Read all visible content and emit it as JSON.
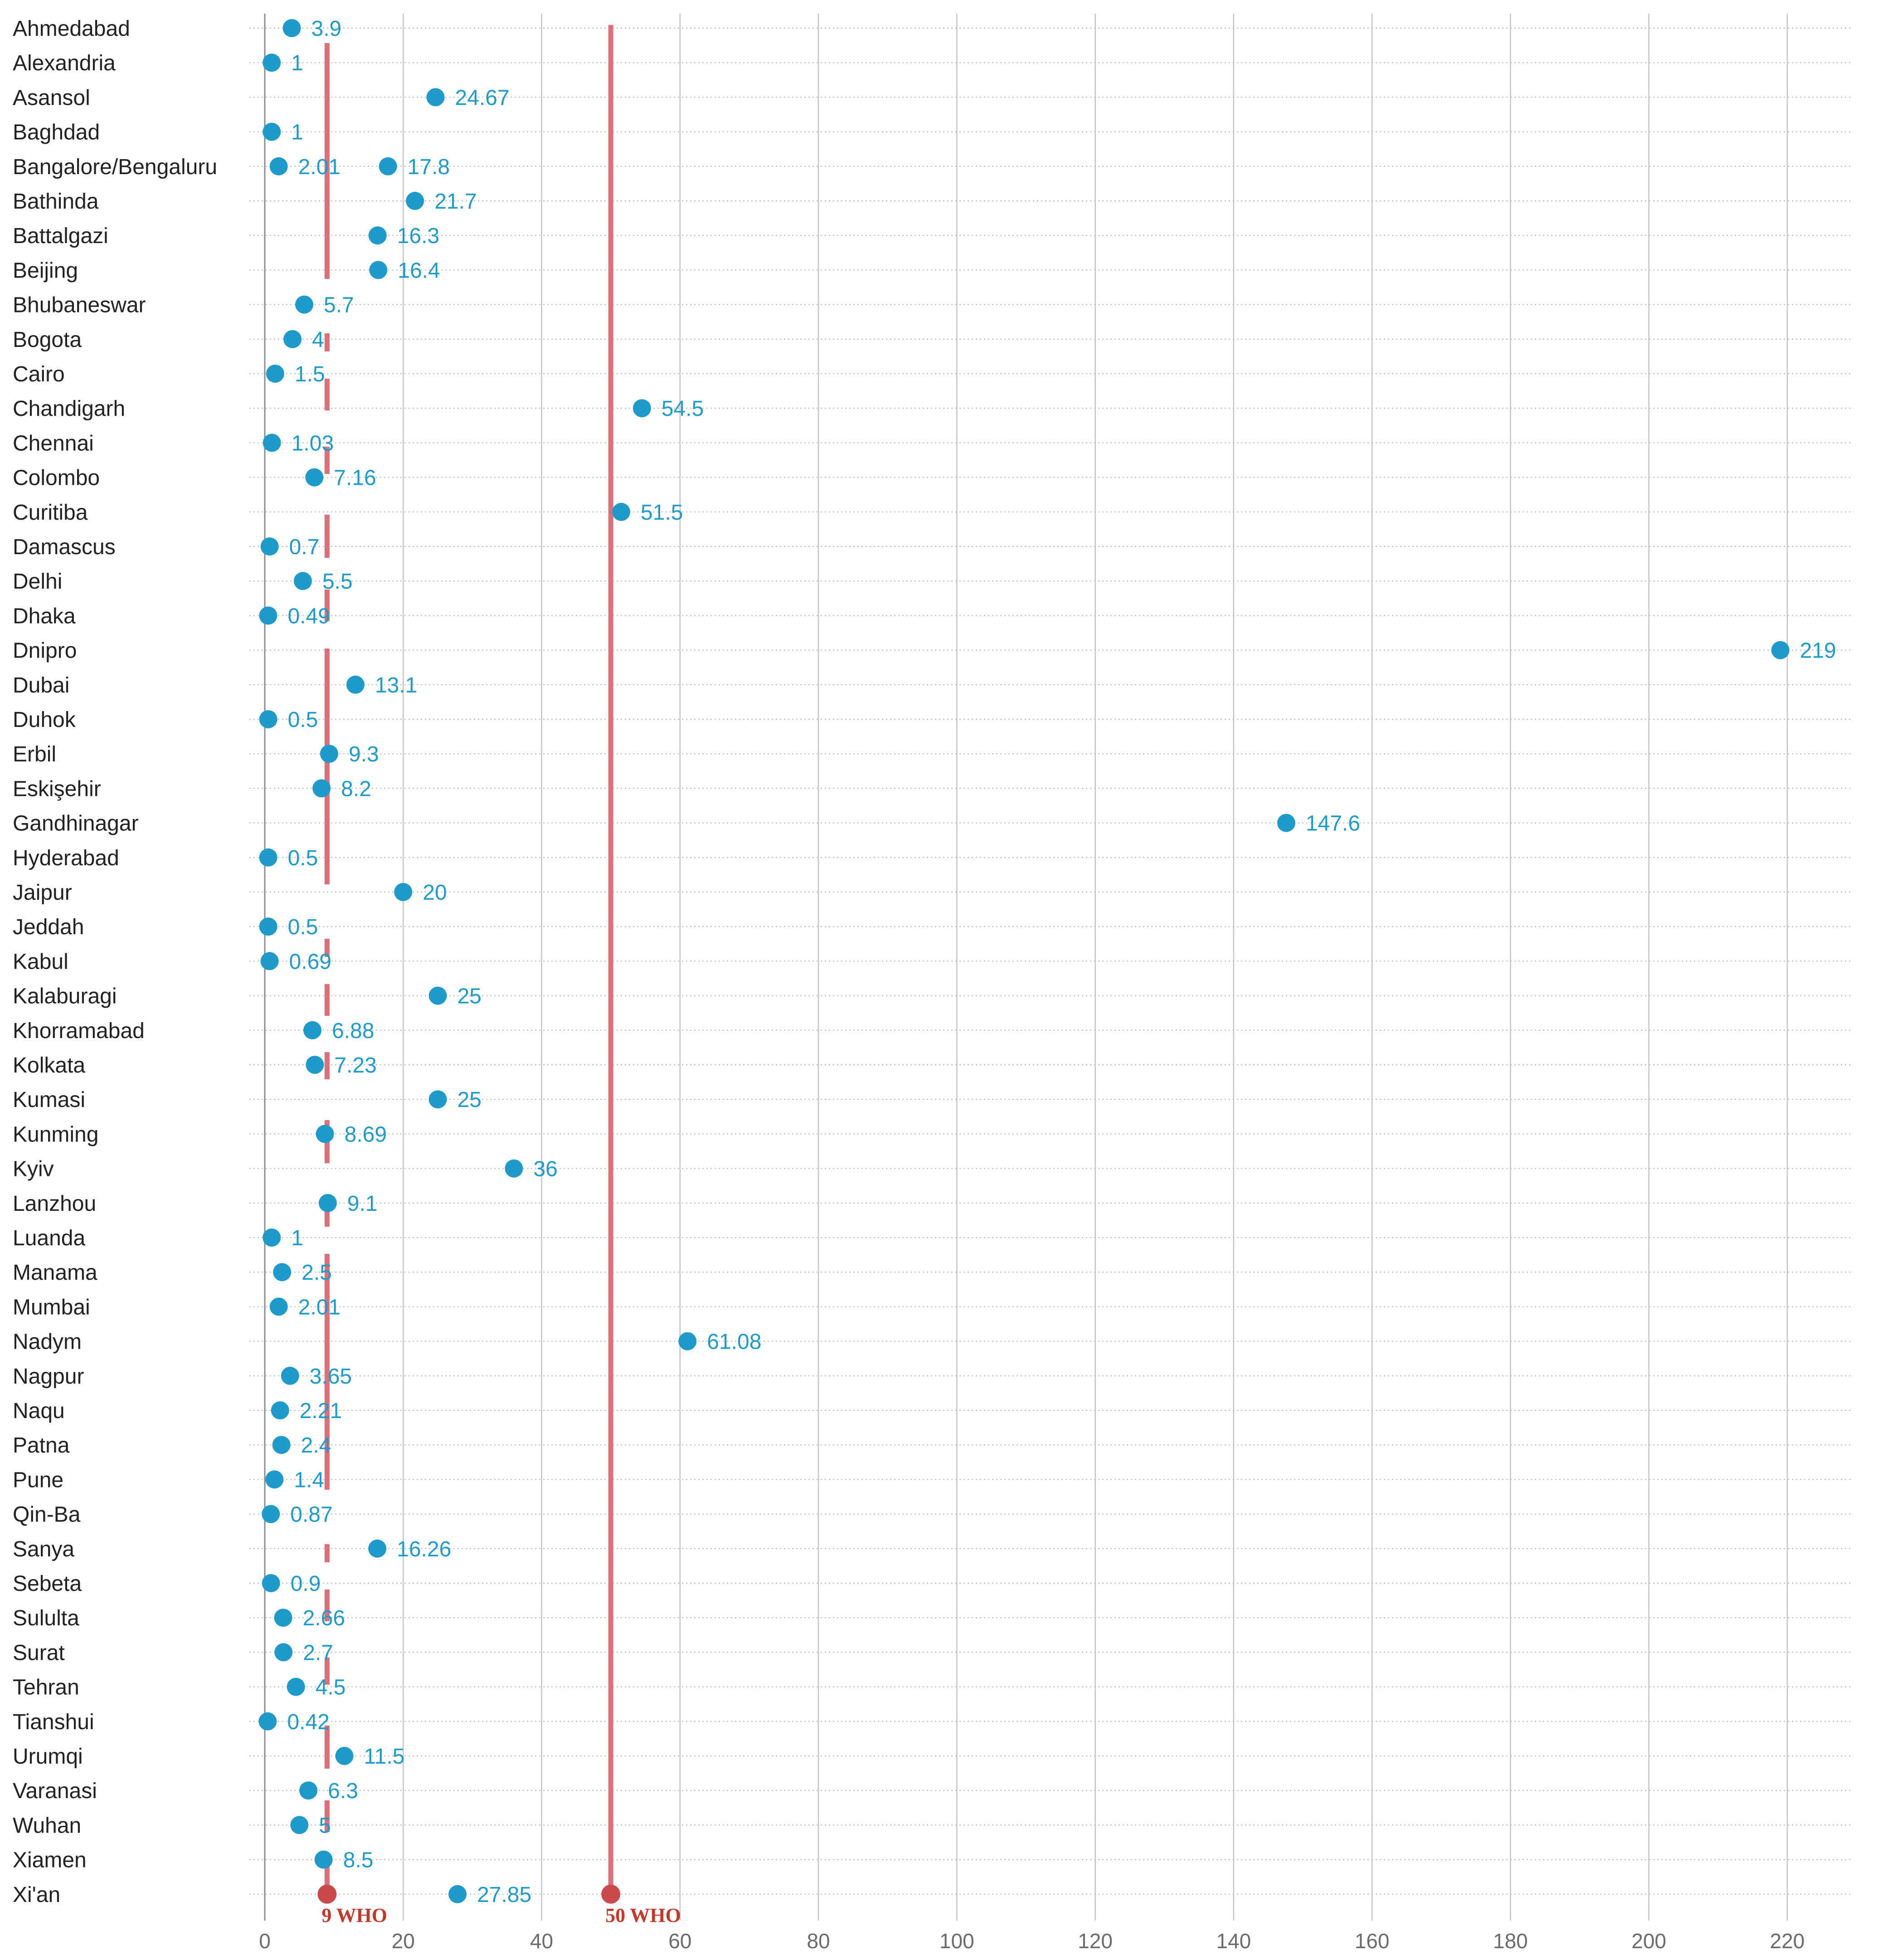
{
  "chart_data": {
    "type": "scatter",
    "orientation": "horizontal-dot",
    "categories": [
      "Ahmedabad",
      "Alexandria",
      "Asansol",
      "Baghdad",
      "Bangalore/Bengaluru",
      "Bathinda",
      "Battalgazi",
      "Beijing",
      "Bhubaneswar",
      "Bogota",
      "Cairo",
      "Chandigarh",
      "Chennai",
      "Colombo",
      "Curitiba",
      "Damascus",
      "Delhi",
      "Dhaka",
      "Dnipro",
      "Dubai",
      "Duhok",
      "Erbil",
      "Eskişehir",
      "Gandhinagar",
      "Hyderabad",
      "Jaipur",
      "Jeddah",
      "Kabul",
      "Kalaburagi",
      "Khorramabad",
      "Kolkata",
      "Kumasi",
      "Kunming",
      "Kyiv",
      "Lanzhou",
      "Luanda",
      "Manama",
      "Mumbai",
      "Nadym",
      "Nagpur",
      "Naqu",
      "Patna",
      "Pune",
      "Qin-Ba",
      "Sanya",
      "Sebeta",
      "Sululta",
      "Surat",
      "Tehran",
      "Tianshui",
      "Urumqi",
      "Varanasi",
      "Wuhan",
      "Xiamen",
      "Xi'an"
    ],
    "points": [
      {
        "row": 0,
        "value": 3.9,
        "label": "3.9"
      },
      {
        "row": 1,
        "value": 1,
        "label": "1"
      },
      {
        "row": 2,
        "value": 24.67,
        "label": "24.67"
      },
      {
        "row": 3,
        "value": 1,
        "label": "1"
      },
      {
        "row": 4,
        "value": 2.01,
        "label": "2.01"
      },
      {
        "row": 4,
        "value": 17.8,
        "label": "17.8"
      },
      {
        "row": 5,
        "value": 21.7,
        "label": "21.7"
      },
      {
        "row": 6,
        "value": 16.3,
        "label": "16.3"
      },
      {
        "row": 7,
        "value": 16.4,
        "label": "16.4"
      },
      {
        "row": 8,
        "value": 5.7,
        "label": "5.7"
      },
      {
        "row": 9,
        "value": 4,
        "label": "4"
      },
      {
        "row": 10,
        "value": 1.5,
        "label": "1.5"
      },
      {
        "row": 11,
        "value": 54.5,
        "label": "54.5"
      },
      {
        "row": 12,
        "value": 1.03,
        "label": "1.03"
      },
      {
        "row": 13,
        "value": 7.16,
        "label": "7.16"
      },
      {
        "row": 14,
        "value": 51.5,
        "label": "51.5"
      },
      {
        "row": 15,
        "value": 0.7,
        "label": "0.7"
      },
      {
        "row": 16,
        "value": 5.5,
        "label": "5.5"
      },
      {
        "row": 17,
        "value": 0.49,
        "label": "0.49"
      },
      {
        "row": 18,
        "value": 219,
        "label": "219"
      },
      {
        "row": 19,
        "value": 13.1,
        "label": "13.1"
      },
      {
        "row": 20,
        "value": 0.5,
        "label": "0.5"
      },
      {
        "row": 21,
        "value": 9.3,
        "label": "9.3"
      },
      {
        "row": 22,
        "value": 8.2,
        "label": "8.2"
      },
      {
        "row": 23,
        "value": 147.6,
        "label": "147.6"
      },
      {
        "row": 24,
        "value": 0.5,
        "label": "0.5"
      },
      {
        "row": 25,
        "value": 20,
        "label": "20"
      },
      {
        "row": 26,
        "value": 0.5,
        "label": "0.5"
      },
      {
        "row": 27,
        "value": 0.69,
        "label": "0.69"
      },
      {
        "row": 28,
        "value": 25,
        "label": "25"
      },
      {
        "row": 29,
        "value": 6.88,
        "label": "6.88"
      },
      {
        "row": 30,
        "value": 7.23,
        "label": "7.23"
      },
      {
        "row": 31,
        "value": 25,
        "label": "25"
      },
      {
        "row": 32,
        "value": 8.69,
        "label": "8.69"
      },
      {
        "row": 33,
        "value": 36,
        "label": "36"
      },
      {
        "row": 34,
        "value": 9.1,
        "label": "9.1"
      },
      {
        "row": 35,
        "value": 1,
        "label": "1"
      },
      {
        "row": 36,
        "value": 2.5,
        "label": "2.5"
      },
      {
        "row": 37,
        "value": 2.01,
        "label": "2.01"
      },
      {
        "row": 38,
        "value": 61.08,
        "label": "61.08"
      },
      {
        "row": 39,
        "value": 3.65,
        "label": "3.65"
      },
      {
        "row": 40,
        "value": 2.21,
        "label": "2.21"
      },
      {
        "row": 41,
        "value": 2.4,
        "label": "2.4"
      },
      {
        "row": 42,
        "value": 1.4,
        "label": "1.4"
      },
      {
        "row": 43,
        "value": 0.87,
        "label": "0.87"
      },
      {
        "row": 44,
        "value": 16.26,
        "label": "16.26"
      },
      {
        "row": 45,
        "value": 0.9,
        "label": "0.9"
      },
      {
        "row": 46,
        "value": 2.66,
        "label": "2.66"
      },
      {
        "row": 47,
        "value": 2.7,
        "label": "2.7"
      },
      {
        "row": 48,
        "value": 4.5,
        "label": "4.5"
      },
      {
        "row": 49,
        "value": 0.42,
        "label": "0.42"
      },
      {
        "row": 50,
        "value": 11.5,
        "label": "11.5"
      },
      {
        "row": 51,
        "value": 6.3,
        "label": "6.3"
      },
      {
        "row": 52,
        "value": 5,
        "label": "5"
      },
      {
        "row": 53,
        "value": 8.5,
        "label": "8.5"
      },
      {
        "row": 54,
        "value": 27.85,
        "label": "27.85"
      }
    ],
    "reference_lines": [
      {
        "value": 9,
        "label": "9 WHO",
        "style": "dashed"
      },
      {
        "value": 50,
        "label": "50 WHO",
        "style": "solid"
      }
    ],
    "x_ticks": [
      0,
      20,
      40,
      60,
      80,
      100,
      120,
      140,
      160,
      180,
      200,
      220
    ],
    "xlim": [
      0,
      228
    ],
    "xlabel": "",
    "ylabel": "",
    "title": "",
    "grid": {
      "vertical": true,
      "horizontal_dotted": true
    },
    "colors": {
      "point": "#1f9ac9",
      "value_label": "#1f9ac9",
      "reference": "#d9707a",
      "reference_label": "#c0392b",
      "reference_marker": "#c94a4a",
      "grid": "#c4c4c4",
      "row_guide": "#b8b8b8",
      "category_text": "#222222",
      "tick_text": "#6b6b6b"
    }
  }
}
